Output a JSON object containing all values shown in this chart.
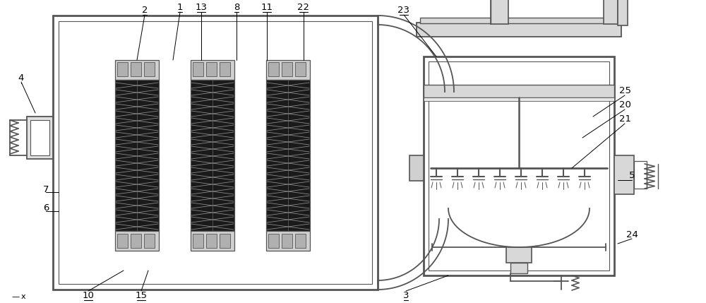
{
  "bg_color": "#ffffff",
  "lc": "#555555",
  "lc2": "#333333",
  "figsize": [
    10.0,
    4.29
  ],
  "dpi": 100
}
